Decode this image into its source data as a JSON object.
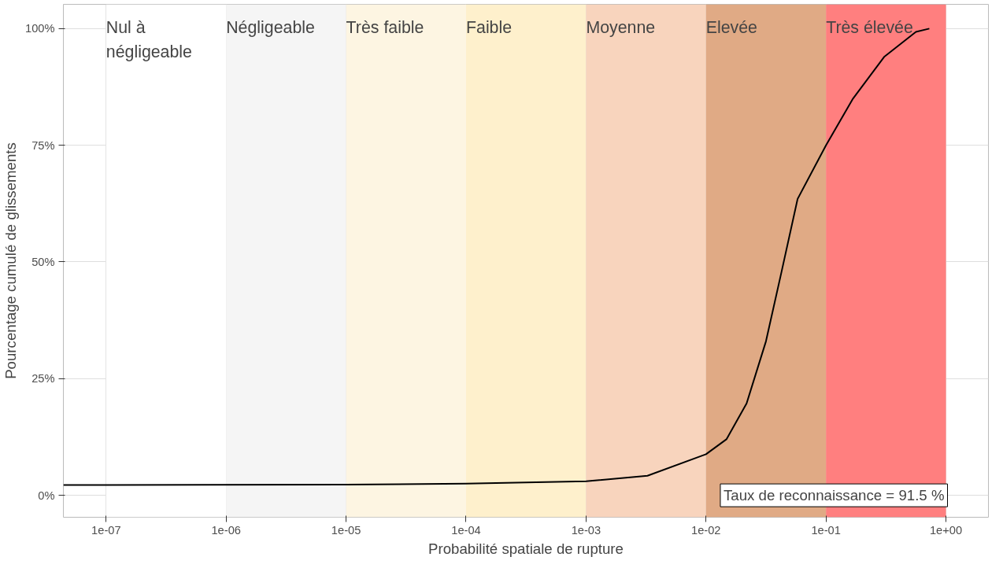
{
  "chart_data": {
    "type": "line",
    "xlabel": "Probabilité spatiale de rupture",
    "ylabel": "Pourcentage cumulé de glissements",
    "log": "x",
    "grid": true,
    "xlim": [
      4.4e-08,
      2.26
    ],
    "ylim": [
      -4.7,
      105.2
    ],
    "xticks": [
      {
        "value": 1e-07,
        "label": "1e-07"
      },
      {
        "value": 1e-06,
        "label": "1e-06"
      },
      {
        "value": 1e-05,
        "label": "1e-05"
      },
      {
        "value": 0.0001,
        "label": "1e-04"
      },
      {
        "value": 0.001,
        "label": "1e-03"
      },
      {
        "value": 0.01,
        "label": "1e-02"
      },
      {
        "value": 0.1,
        "label": "1e-01"
      },
      {
        "value": 1,
        "label": "1e+00"
      }
    ],
    "yticks": [
      {
        "value": 0,
        "label": "0%"
      },
      {
        "value": 25,
        "label": "25%"
      },
      {
        "value": 50,
        "label": "50%"
      },
      {
        "value": 75,
        "label": "75%"
      },
      {
        "value": 100,
        "label": "100%"
      }
    ],
    "bands": [
      {
        "axis": "x",
        "from": 1e-07,
        "to": 1e-06,
        "label": "Nul à négligeable",
        "color": "#ffffff"
      },
      {
        "axis": "x",
        "from": 1e-06,
        "to": 1e-05,
        "label": "Négligeable",
        "color": "#f5f5f5"
      },
      {
        "axis": "x",
        "from": 1e-05,
        "to": 0.0001,
        "label": "Très faible",
        "color": "#fdf5e2"
      },
      {
        "axis": "x",
        "from": 0.0001,
        "to": 0.001,
        "label": "Faible",
        "color": "#fef0cc"
      },
      {
        "axis": "x",
        "from": 0.001,
        "to": 0.01,
        "label": "Moyenne",
        "color": "#f8d4bd"
      },
      {
        "axis": "x",
        "from": 0.01,
        "to": 0.1,
        "label": "Elevée",
        "color": "#e0aa85"
      },
      {
        "axis": "x",
        "from": 0.1,
        "to": 1,
        "label": "Très élevée",
        "color": "#ff7f7f"
      }
    ],
    "annotations": [
      "Taux de reconnaissance = 91.5 %"
    ],
    "series": [
      {
        "color": "#000000",
        "x": [
          4.4e-08,
          1e-07,
          1e-05,
          0.0001,
          0.001,
          0.00325,
          0.01,
          0.0148,
          0.0218,
          0.0316,
          0.0427,
          0.058,
          0.1,
          0.168,
          0.307,
          0.562,
          0.727
        ],
        "values": [
          2.2,
          2.2,
          2.3,
          2.5,
          3.0,
          4.2,
          8.8,
          12,
          19.7,
          33,
          48,
          63.5,
          75,
          85,
          94,
          99.3,
          100
        ]
      }
    ]
  }
}
